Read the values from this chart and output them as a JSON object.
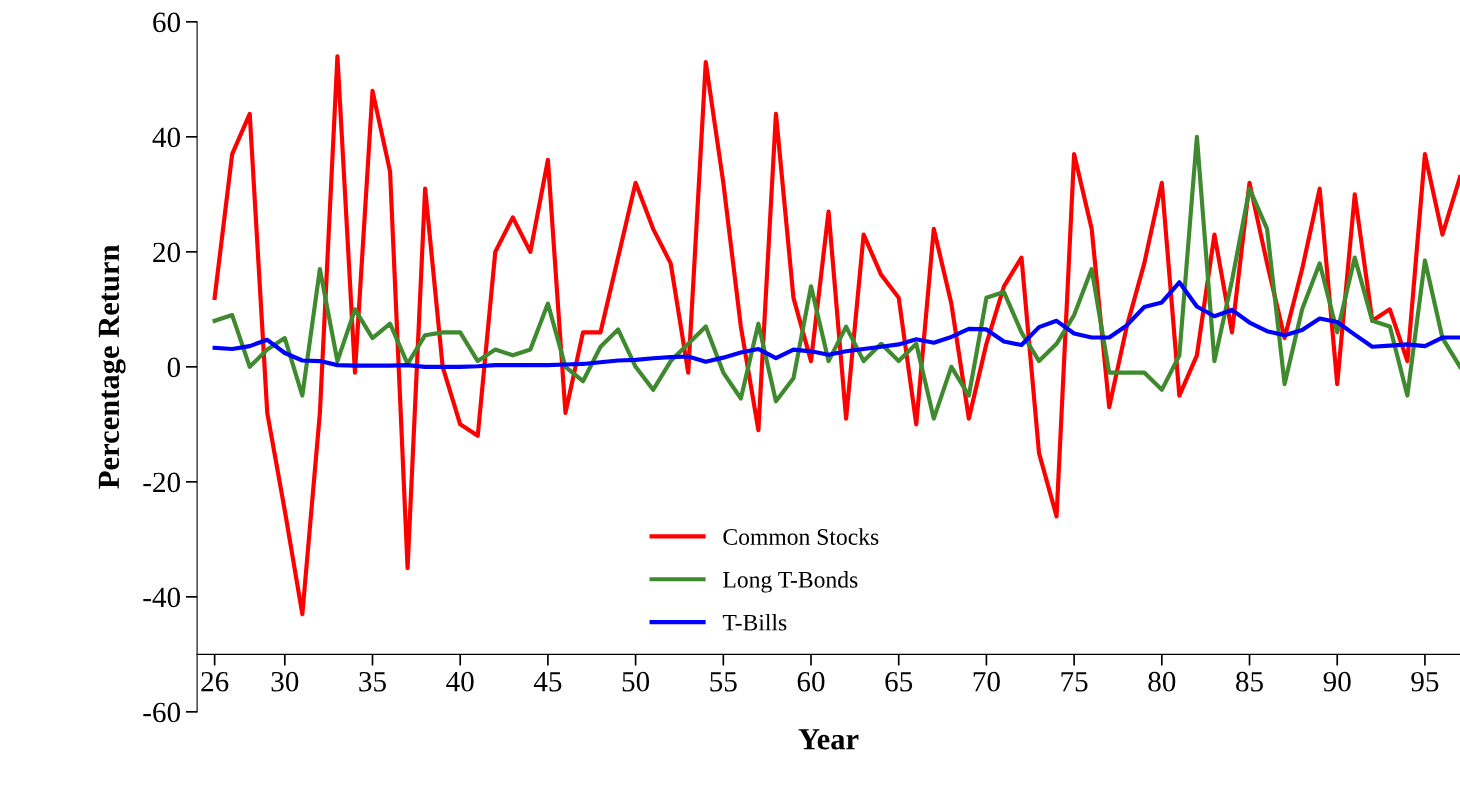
{
  "chart_data": {
    "type": "line",
    "xlabel": "Year",
    "ylabel": "Percentage Return",
    "x": [
      26,
      27,
      28,
      29,
      30,
      31,
      32,
      33,
      34,
      35,
      36,
      37,
      38,
      39,
      40,
      41,
      42,
      43,
      44,
      45,
      46,
      47,
      48,
      49,
      50,
      51,
      52,
      53,
      54,
      55,
      56,
      57,
      58,
      59,
      60,
      61,
      62,
      63,
      64,
      65,
      66,
      67,
      68,
      69,
      70,
      71,
      72,
      73,
      74,
      75,
      76,
      77,
      78,
      79,
      80,
      81,
      82,
      83,
      84,
      85,
      86,
      87,
      88,
      89,
      90,
      91,
      92,
      93,
      94,
      95,
      96,
      97
    ],
    "series": [
      {
        "name": "Common Stocks",
        "color": "#ff0000",
        "values": [
          12,
          37,
          44,
          -8,
          -25,
          -43,
          -8,
          54,
          -1,
          48,
          34,
          -35,
          31,
          0,
          -10,
          -12,
          20,
          26,
          20,
          36,
          -8,
          6,
          6,
          19,
          32,
          24,
          18,
          -1,
          53,
          32,
          7,
          -11,
          44,
          12,
          1,
          27,
          -9,
          23,
          16,
          12,
          -10,
          24,
          11,
          -9,
          4,
          14,
          19,
          -15,
          -26,
          37,
          24,
          -7,
          7,
          18,
          32,
          -5,
          2,
          23,
          6,
          32,
          18,
          5,
          17,
          31,
          -3,
          30,
          8,
          10,
          1,
          37,
          23,
          33
        ]
      },
      {
        "name": "Long T-Bonds",
        "color": "#3f8a2e",
        "values": [
          8,
          9,
          0,
          3,
          5,
          -5,
          17,
          1,
          10,
          5,
          7.5,
          0.5,
          5.5,
          6,
          6,
          1,
          3,
          2,
          3,
          11,
          0,
          -2.5,
          3.5,
          6.5,
          0,
          -4,
          1,
          4,
          7,
          -1,
          -5.5,
          7.5,
          -6,
          -2,
          14,
          1,
          7,
          1,
          4,
          1,
          4,
          -9,
          0,
          -5,
          12,
          13,
          6,
          1,
          4,
          9,
          17,
          -1,
          -1,
          -1,
          -4,
          2,
          40,
          1,
          15,
          31,
          24,
          -3,
          10,
          18,
          6,
          19,
          8,
          7,
          -5,
          18.5,
          5,
          0
        ]
      },
      {
        "name": "T-Bills",
        "color": "#0000ff",
        "values": [
          3.3,
          3.1,
          3.6,
          4.7,
          2.4,
          1.1,
          1.0,
          0.3,
          0.2,
          0.2,
          0.2,
          0.3,
          0.0,
          0.0,
          0.0,
          0.1,
          0.3,
          0.3,
          0.3,
          0.3,
          0.4,
          0.5,
          0.8,
          1.1,
          1.2,
          1.5,
          1.7,
          1.8,
          0.9,
          1.6,
          2.5,
          3.1,
          1.5,
          3.0,
          2.7,
          2.1,
          2.7,
          3.1,
          3.5,
          3.9,
          4.8,
          4.2,
          5.2,
          6.6,
          6.5,
          4.4,
          3.8,
          6.9,
          8.0,
          5.8,
          5.1,
          5.1,
          7.2,
          10.4,
          11.2,
          14.7,
          10.5,
          8.8,
          9.9,
          7.7,
          6.2,
          5.5,
          6.4,
          8.4,
          7.8,
          5.6,
          3.5,
          3.7,
          3.9,
          3.6,
          5.1,
          5.1
        ]
      }
    ],
    "xlim": [
      25,
      97
    ],
    "xticks": [
      {
        "value": 26,
        "label": "26"
      },
      30,
      35,
      40,
      45,
      50,
      55,
      60,
      65,
      70,
      75,
      80,
      85,
      90,
      95
    ],
    "ylim": [
      -60,
      60
    ],
    "yticks": [
      -60,
      -40,
      -20,
      0,
      20,
      40,
      60
    ],
    "grid": false,
    "legend": "bottom",
    "marker": "none",
    "line_style": "solid"
  }
}
